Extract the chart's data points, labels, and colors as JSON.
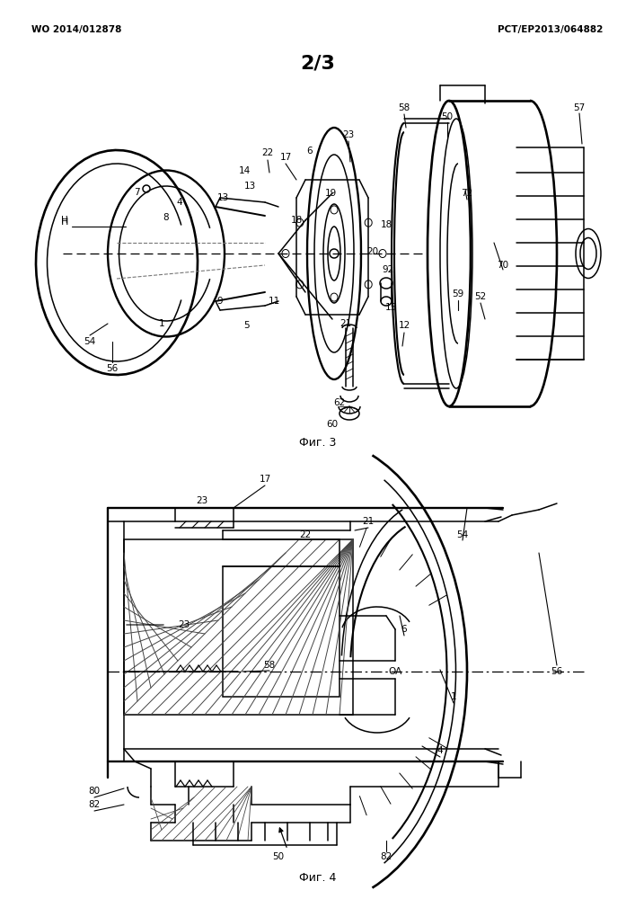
{
  "title_left": "WO 2014/012878",
  "title_right": "PCT/EP2013/064882",
  "page_label": "2/3",
  "fig3_caption": "Фиг. 3",
  "fig4_caption": "Фиг. 4",
  "background_color": "#ffffff",
  "line_color": "#000000",
  "lw": 1.1
}
